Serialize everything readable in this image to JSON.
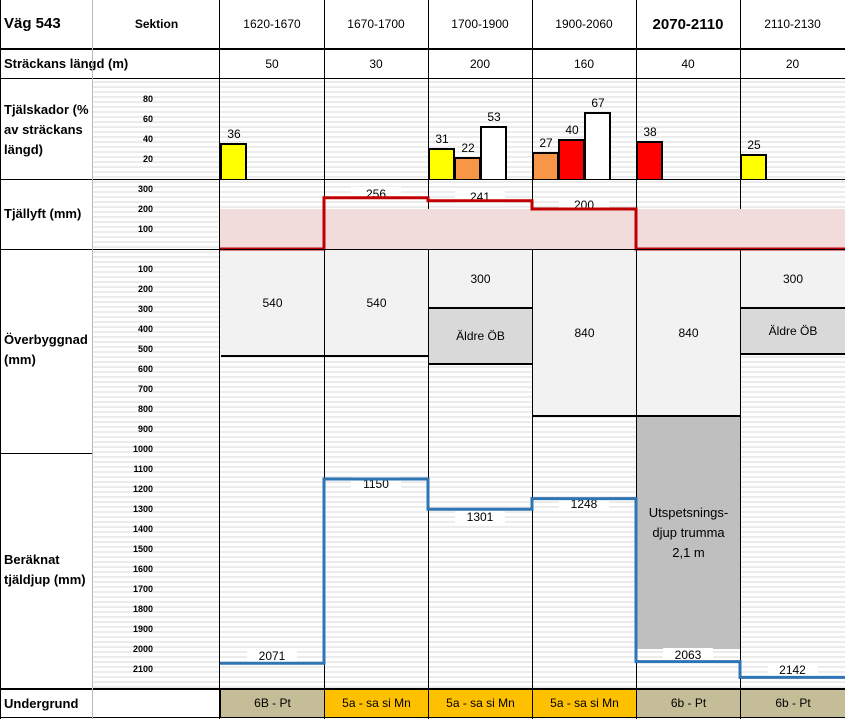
{
  "header": {
    "road": "Väg 543",
    "section_label": "Sektion"
  },
  "sections": [
    {
      "range": "1620-1670",
      "length": "50",
      "bold": false
    },
    {
      "range": "1670-1700",
      "length": "30",
      "bold": false
    },
    {
      "range": "1700-1900",
      "length": "200",
      "bold": false
    },
    {
      "range": "1900-2060",
      "length": "160",
      "bold": false
    },
    {
      "range": "2070-2110",
      "length": "40",
      "bold": true
    },
    {
      "range": "2110-2130",
      "length": "20",
      "bold": false
    }
  ],
  "rows": {
    "length_label": "Sträckans längd (m)",
    "damage_label": "Tjälskador (% av sträckans längd)",
    "heave_label": "Tjällyft (mm)",
    "pavement_label": "Överbyggnad (mm)",
    "frost_label": "Beräknat tjäldjup (mm)",
    "subgrade_label": "Undergrund"
  },
  "damage_ticks": [
    "80",
    "60",
    "40",
    "20"
  ],
  "heave_ticks": [
    "300",
    "200",
    "100"
  ],
  "depth_ticks": [
    "100",
    "200",
    "300",
    "400",
    "500",
    "600",
    "700",
    "800",
    "900",
    "1000",
    "1100",
    "1200",
    "1300",
    "1400",
    "1500",
    "1600",
    "1700",
    "1800",
    "1900",
    "2000",
    "2100"
  ],
  "damage_bars": [
    {
      "section": 0,
      "value": 36,
      "label": "36",
      "color": "#ffff00"
    },
    {
      "section": 2,
      "value": 31,
      "label": "31",
      "color": "#ffff00"
    },
    {
      "section": 2,
      "value": 22,
      "label": "22",
      "color": "#f79646"
    },
    {
      "section": 2,
      "value": 53,
      "label": "53",
      "color": "#ffffff"
    },
    {
      "section": 3,
      "value": 27,
      "label": "27",
      "color": "#f79646"
    },
    {
      "section": 3,
      "value": 40,
      "label": "40",
      "color": "#ff0000"
    },
    {
      "section": 3,
      "value": 67,
      "label": "67",
      "color": "#ffffff"
    },
    {
      "section": 4,
      "value": 38,
      "label": "38",
      "color": "#ff0000"
    },
    {
      "section": 5,
      "value": 25,
      "label": "25",
      "color": "#ffff00"
    }
  ],
  "heave": [
    {
      "value": 0,
      "label": "0"
    },
    {
      "value": 256,
      "label": "256"
    },
    {
      "value": 241,
      "label": "241"
    },
    {
      "value": 200,
      "label": "200"
    },
    {
      "value": 0,
      "label": "0"
    },
    {
      "value": 0,
      "label": "0"
    }
  ],
  "pavement": [
    {
      "top_label": "540",
      "top_depth": 540,
      "old_label": "",
      "old_depth": 0
    },
    {
      "top_label": "540",
      "top_depth": 540,
      "old_label": "",
      "old_depth": 0
    },
    {
      "top_label": "300",
      "top_depth": 300,
      "old_label": "Äldre ÖB",
      "old_depth": 580
    },
    {
      "top_label": "840",
      "top_depth": 840,
      "old_label": "",
      "old_depth": 0
    },
    {
      "top_label": "840",
      "top_depth": 840,
      "old_label": "",
      "old_depth": 0
    },
    {
      "top_label": "300",
      "top_depth": 300,
      "old_label": "Äldre ÖB",
      "old_depth": 530
    }
  ],
  "culvert": {
    "line1": "Utspetsnings-",
    "line2": "djup trumma",
    "line3": "2,1 m",
    "from": 840,
    "to": 2000
  },
  "frost_depth": [
    {
      "value": 2071,
      "label": "2071"
    },
    {
      "value": 1150,
      "label": "1150"
    },
    {
      "value": 1301,
      "label": "1301"
    },
    {
      "value": 1248,
      "label": "1248"
    },
    {
      "value": 2063,
      "label": "2063"
    },
    {
      "value": 2142,
      "label": "2142"
    }
  ],
  "subgrade": [
    {
      "label": "6B - Pt",
      "color": "#c4bd97"
    },
    {
      "label": "5a - sa si Mn",
      "color": "#ffc000"
    },
    {
      "label": "5a - sa si Mn",
      "color": "#ffc000"
    },
    {
      "label": "5a - sa si Mn",
      "color": "#ffc000"
    },
    {
      "label": "6b - Pt",
      "color": "#c4bd97"
    },
    {
      "label": "6b - Pt",
      "color": "#c4bd97"
    }
  ],
  "colors": {
    "heave_line": "#c00000",
    "heave_fill": "#f2dcdb",
    "frost_line": "#2e75b6",
    "culvert": "#bfbfbf"
  }
}
